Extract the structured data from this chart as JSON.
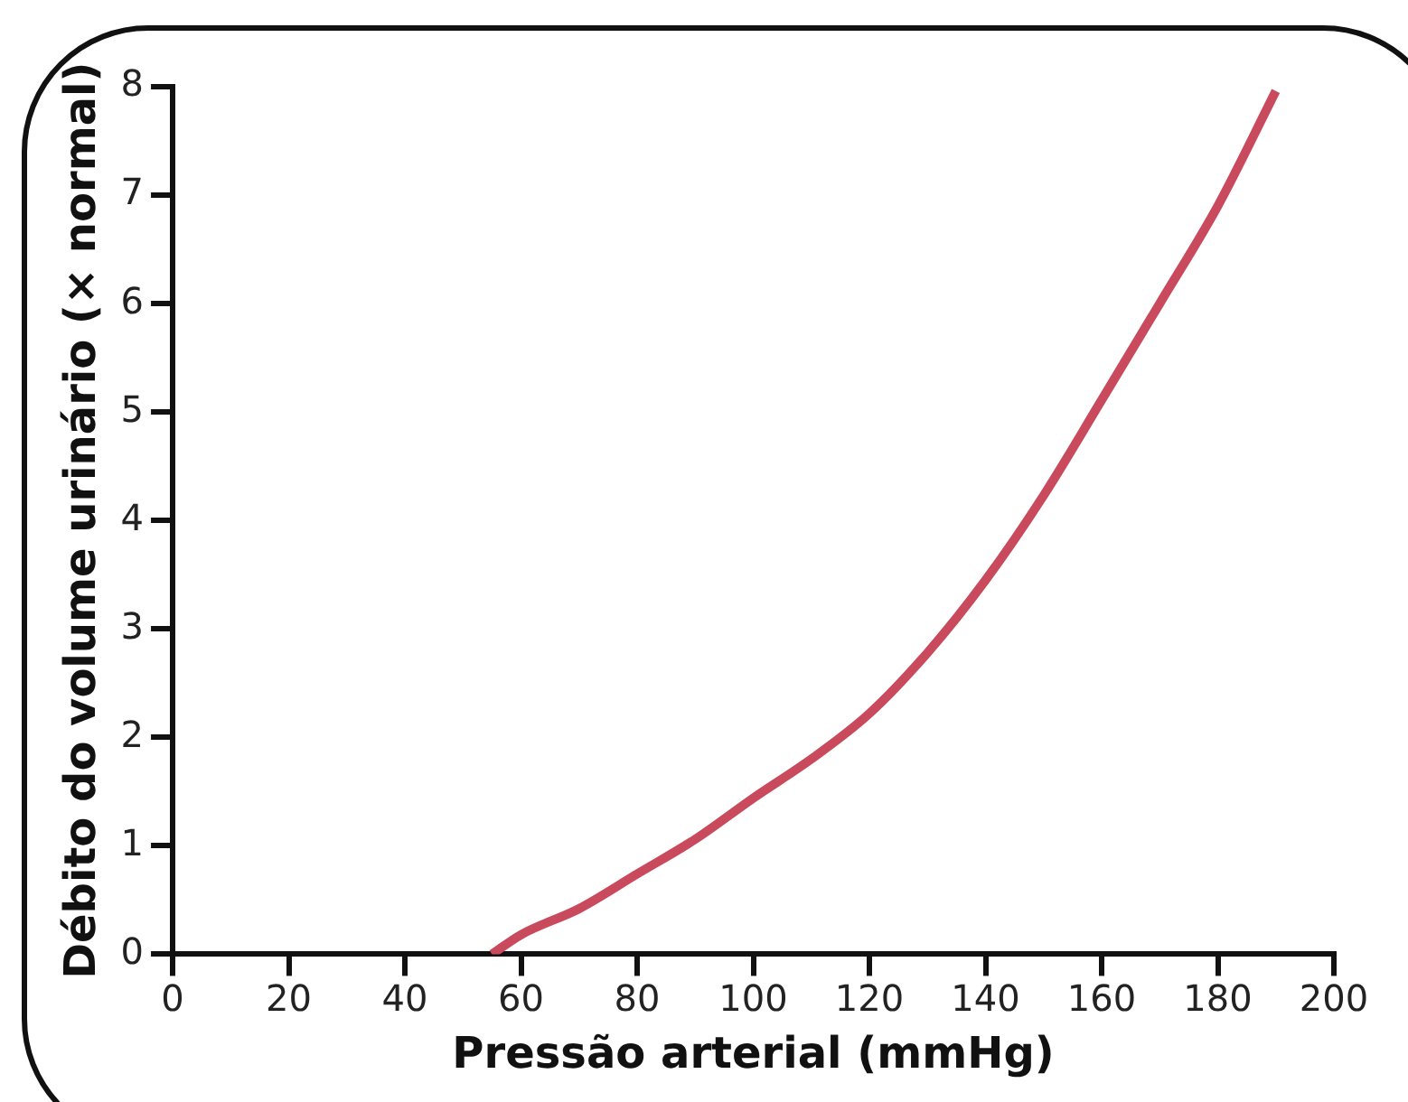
{
  "chart_data": {
    "type": "line",
    "xlabel": "Pressão arterial (mmHg)",
    "ylabel": "Débito do volume urinário (× normal)",
    "xlim": [
      0,
      200
    ],
    "xticks": [
      0,
      20,
      40,
      60,
      80,
      100,
      120,
      140,
      160,
      180,
      200
    ],
    "ylim": [
      0,
      8
    ],
    "yticks": [
      0,
      1,
      2,
      3,
      4,
      5,
      6,
      7,
      8
    ],
    "grid": false,
    "legend": false,
    "marker": "none",
    "line_style": "solid",
    "series": [
      {
        "color": "#c94a5c",
        "x": [
          55,
          60,
          70,
          80,
          90,
          100,
          110,
          120,
          130,
          140,
          150,
          160,
          170,
          180,
          190
        ],
        "values": [
          0,
          0.18,
          0.42,
          0.74,
          1.06,
          1.44,
          1.8,
          2.22,
          2.78,
          3.45,
          4.23,
          5.11,
          6.0,
          6.9,
          7.96
        ]
      }
    ]
  }
}
